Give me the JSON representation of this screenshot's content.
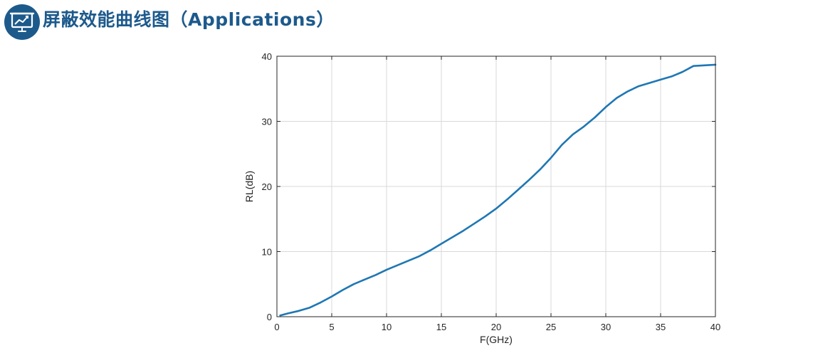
{
  "header": {
    "title": "屏蔽效能曲线图（Applications）",
    "icon": "presentation-chart-icon"
  },
  "colors": {
    "title": "#1d5a8c",
    "icon_bg": "#1d5a8c",
    "series": "#1f77b4",
    "grid": "#d9d9d9",
    "axis": "#262626"
  },
  "chart_data": {
    "type": "line",
    "title": "",
    "xlabel": "F(GHz)",
    "ylabel": "RL(dB)",
    "xlim": [
      0,
      40
    ],
    "ylim": [
      0,
      40
    ],
    "xticks": [
      0,
      5,
      10,
      15,
      20,
      25,
      30,
      35,
      40
    ],
    "yticks": [
      0,
      10,
      20,
      30,
      40
    ],
    "grid": true,
    "legend": "none",
    "series": [
      {
        "name": "",
        "x": [
          0.3,
          1,
          2,
          3,
          4,
          5,
          6,
          7,
          8,
          9,
          10,
          11,
          12,
          13,
          14,
          15,
          16,
          17,
          18,
          19,
          20,
          21,
          22,
          23,
          24,
          25,
          26,
          27,
          28,
          29,
          30,
          31,
          32,
          33,
          34,
          35,
          36,
          37,
          38,
          39,
          40
        ],
        "y": [
          0.2,
          0.5,
          0.9,
          1.4,
          2.2,
          3.1,
          4.1,
          5.0,
          5.7,
          6.4,
          7.2,
          7.9,
          8.6,
          9.3,
          10.2,
          11.2,
          12.2,
          13.2,
          14.3,
          15.4,
          16.6,
          18.0,
          19.5,
          21.0,
          22.6,
          24.4,
          26.4,
          28.0,
          29.2,
          30.6,
          32.2,
          33.6,
          34.6,
          35.4,
          35.9,
          36.4,
          36.9,
          37.6,
          38.5,
          38.6,
          38.7
        ]
      }
    ]
  }
}
